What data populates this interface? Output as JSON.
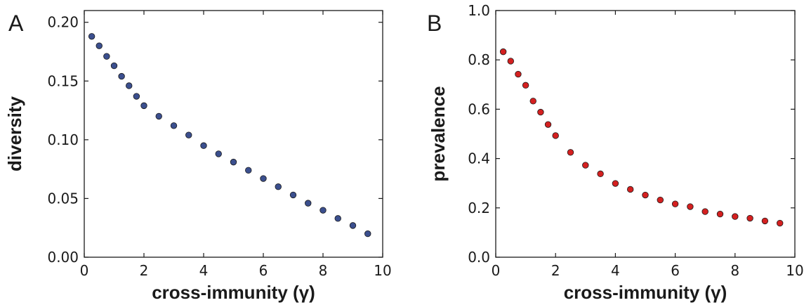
{
  "chart_data": [
    {
      "type": "scatter",
      "panel_label": "A",
      "xlabel": "cross-immunity (γ)",
      "ylabel": "diversity",
      "xlim": [
        0,
        10
      ],
      "ylim": [
        0,
        0.21
      ],
      "x_ticks": [
        "0",
        "2",
        "4",
        "6",
        "8",
        "10"
      ],
      "y_ticks": [
        "0.00",
        "0.05",
        "0.10",
        "0.15",
        "0.20"
      ],
      "marker_color": "#3b4f8e",
      "series": [
        {
          "x": [
            0.25,
            0.5,
            0.75,
            1.0,
            1.25,
            1.5,
            1.75,
            2.0,
            2.5,
            3.0,
            3.5,
            4.0,
            4.5,
            5.0,
            5.5,
            6.0,
            6.5,
            7.0,
            7.5,
            8.0,
            8.5,
            9.0,
            9.5
          ],
          "y": [
            0.188,
            0.18,
            0.171,
            0.163,
            0.154,
            0.146,
            0.137,
            0.129,
            0.12,
            0.112,
            0.104,
            0.095,
            0.088,
            0.081,
            0.074,
            0.067,
            0.06,
            0.053,
            0.046,
            0.04,
            0.033,
            0.027,
            0.02
          ]
        }
      ],
      "grid": false
    },
    {
      "type": "scatter",
      "panel_label": "B",
      "xlabel": "cross-immunity (γ)",
      "ylabel": "prevalence",
      "xlim": [
        0,
        10
      ],
      "ylim": [
        0,
        1.0
      ],
      "x_ticks": [
        "0",
        "2",
        "4",
        "6",
        "8",
        "10"
      ],
      "y_ticks": [
        "0.0",
        "0.2",
        "0.4",
        "0.6",
        "0.8",
        "1.0"
      ],
      "marker_color": "#d42020",
      "series": [
        {
          "x": [
            0.25,
            0.5,
            0.75,
            1.0,
            1.25,
            1.5,
            1.75,
            2.0,
            2.5,
            3.0,
            3.5,
            4.0,
            4.5,
            5.0,
            5.5,
            6.0,
            6.5,
            7.0,
            7.5,
            8.0,
            8.5,
            9.0,
            9.5
          ],
          "y": [
            0.833,
            0.795,
            0.742,
            0.697,
            0.633,
            0.588,
            0.538,
            0.493,
            0.425,
            0.373,
            0.338,
            0.299,
            0.275,
            0.252,
            0.232,
            0.216,
            0.205,
            0.185,
            0.175,
            0.165,
            0.158,
            0.147,
            0.138
          ]
        }
      ],
      "grid": false
    }
  ]
}
